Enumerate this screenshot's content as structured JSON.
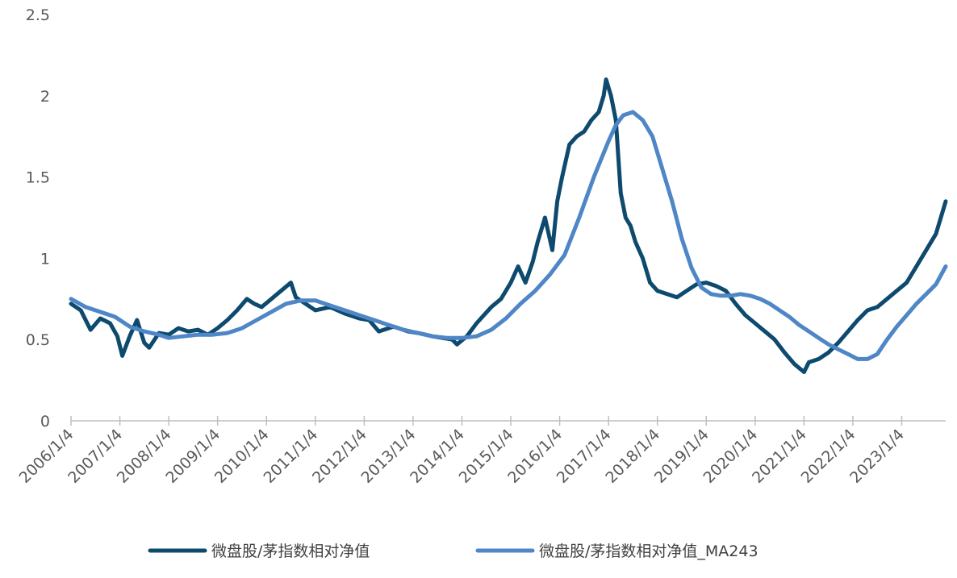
{
  "chart_data": {
    "type": "line",
    "title": "",
    "xlabel": "",
    "ylabel": "",
    "ylim": [
      0,
      2.5
    ],
    "yticks": [
      "0",
      "0.5",
      "1",
      "1.5",
      "2",
      "2.5"
    ],
    "y_tick_values": [
      0,
      0.5,
      1,
      1.5,
      2,
      2.5
    ],
    "x_tick_labels": [
      "2006/1/4",
      "2007/1/4",
      "2008/1/4",
      "2009/1/4",
      "2010/1/4",
      "2011/1/4",
      "2012/1/4",
      "2013/1/4",
      "2014/1/4",
      "2015/1/4",
      "2016/1/4",
      "2017/1/4",
      "2018/1/4",
      "2019/1/4",
      "2020/1/4",
      "2021/1/4",
      "2022/1/4",
      "2023/1/4"
    ],
    "xlim": [
      2006.0,
      2023.9
    ],
    "grid": false,
    "legend_position": "bottom",
    "series": [
      {
        "name": "微盘股/茅指数相对净值",
        "color": "#0d4a6e",
        "x": [
          2006.0,
          2006.2,
          2006.4,
          2006.6,
          2006.8,
          2006.95,
          2007.05,
          2007.2,
          2007.35,
          2007.5,
          2007.6,
          2007.8,
          2008.0,
          2008.2,
          2008.4,
          2008.6,
          2008.8,
          2009.0,
          2009.2,
          2009.4,
          2009.6,
          2009.75,
          2009.9,
          2010.1,
          2010.3,
          2010.5,
          2010.6,
          2010.8,
          2011.0,
          2011.3,
          2011.6,
          2011.9,
          2012.1,
          2012.3,
          2012.6,
          2012.9,
          2013.1,
          2013.4,
          2013.6,
          2013.8,
          2013.9,
          2014.1,
          2014.3,
          2014.6,
          2014.8,
          2015.0,
          2015.15,
          2015.3,
          2015.45,
          2015.55,
          2015.7,
          2015.85,
          2015.95,
          2016.05,
          2016.2,
          2016.35,
          2016.5,
          2016.65,
          2016.8,
          2016.9,
          2016.95,
          2017.05,
          2017.15,
          2017.25,
          2017.35,
          2017.45,
          2017.55,
          2017.7,
          2017.85,
          2018.0,
          2018.2,
          2018.4,
          2018.6,
          2018.8,
          2019.0,
          2019.2,
          2019.4,
          2019.6,
          2019.8,
          2020.0,
          2020.2,
          2020.4,
          2020.6,
          2020.8,
          2021.0,
          2021.1,
          2021.3,
          2021.5,
          2021.7,
          2021.9,
          2022.1,
          2022.3,
          2022.5,
          2022.7,
          2022.9,
          2023.1,
          2023.3,
          2023.5,
          2023.7,
          2023.9
        ],
        "values": [
          0.72,
          0.68,
          0.56,
          0.63,
          0.6,
          0.52,
          0.4,
          0.52,
          0.62,
          0.48,
          0.45,
          0.54,
          0.53,
          0.57,
          0.55,
          0.56,
          0.53,
          0.57,
          0.62,
          0.68,
          0.75,
          0.72,
          0.7,
          0.75,
          0.8,
          0.85,
          0.76,
          0.72,
          0.68,
          0.7,
          0.66,
          0.63,
          0.62,
          0.55,
          0.58,
          0.55,
          0.54,
          0.52,
          0.51,
          0.5,
          0.47,
          0.52,
          0.6,
          0.7,
          0.75,
          0.85,
          0.95,
          0.85,
          0.98,
          1.1,
          1.25,
          1.05,
          1.35,
          1.5,
          1.7,
          1.75,
          1.78,
          1.85,
          1.9,
          2.0,
          2.1,
          2.0,
          1.85,
          1.4,
          1.25,
          1.2,
          1.1,
          1.0,
          0.85,
          0.8,
          0.78,
          0.76,
          0.8,
          0.84,
          0.85,
          0.83,
          0.8,
          0.72,
          0.65,
          0.6,
          0.55,
          0.5,
          0.42,
          0.35,
          0.3,
          0.36,
          0.38,
          0.42,
          0.48,
          0.55,
          0.62,
          0.68,
          0.7,
          0.75,
          0.8,
          0.85,
          0.95,
          1.05,
          1.15,
          1.35
        ]
      },
      {
        "name": "微盘股/茅指数相对净值_MA243",
        "color": "#4f86c6",
        "x": [
          2006.0,
          2006.3,
          2006.6,
          2006.9,
          2007.2,
          2007.5,
          2007.8,
          2008.0,
          2008.3,
          2008.6,
          2008.9,
          2009.2,
          2009.5,
          2009.8,
          2010.1,
          2010.4,
          2010.7,
          2011.0,
          2011.3,
          2011.6,
          2011.9,
          2012.2,
          2012.5,
          2012.8,
          2013.1,
          2013.4,
          2013.7,
          2014.0,
          2014.3,
          2014.6,
          2014.9,
          2015.2,
          2015.5,
          2015.8,
          2016.1,
          2016.4,
          2016.7,
          2017.0,
          2017.15,
          2017.3,
          2017.5,
          2017.7,
          2017.9,
          2018.1,
          2018.3,
          2018.5,
          2018.7,
          2018.9,
          2019.1,
          2019.3,
          2019.5,
          2019.7,
          2019.9,
          2020.1,
          2020.3,
          2020.5,
          2020.7,
          2020.9,
          2021.1,
          2021.3,
          2021.5,
          2021.7,
          2021.9,
          2022.1,
          2022.3,
          2022.5,
          2022.7,
          2022.9,
          2023.1,
          2023.3,
          2023.5,
          2023.7,
          2023.9
        ],
        "values": [
          0.75,
          0.7,
          0.67,
          0.64,
          0.58,
          0.55,
          0.53,
          0.51,
          0.52,
          0.53,
          0.53,
          0.54,
          0.57,
          0.62,
          0.67,
          0.72,
          0.74,
          0.74,
          0.71,
          0.68,
          0.65,
          0.62,
          0.59,
          0.56,
          0.54,
          0.52,
          0.51,
          0.51,
          0.52,
          0.56,
          0.63,
          0.72,
          0.8,
          0.9,
          1.02,
          1.25,
          1.5,
          1.72,
          1.82,
          1.88,
          1.9,
          1.85,
          1.75,
          1.55,
          1.35,
          1.12,
          0.94,
          0.82,
          0.78,
          0.77,
          0.77,
          0.78,
          0.77,
          0.75,
          0.72,
          0.68,
          0.64,
          0.59,
          0.55,
          0.51,
          0.47,
          0.44,
          0.41,
          0.38,
          0.38,
          0.41,
          0.5,
          0.58,
          0.65,
          0.72,
          0.78,
          0.84,
          0.95
        ]
      }
    ]
  }
}
